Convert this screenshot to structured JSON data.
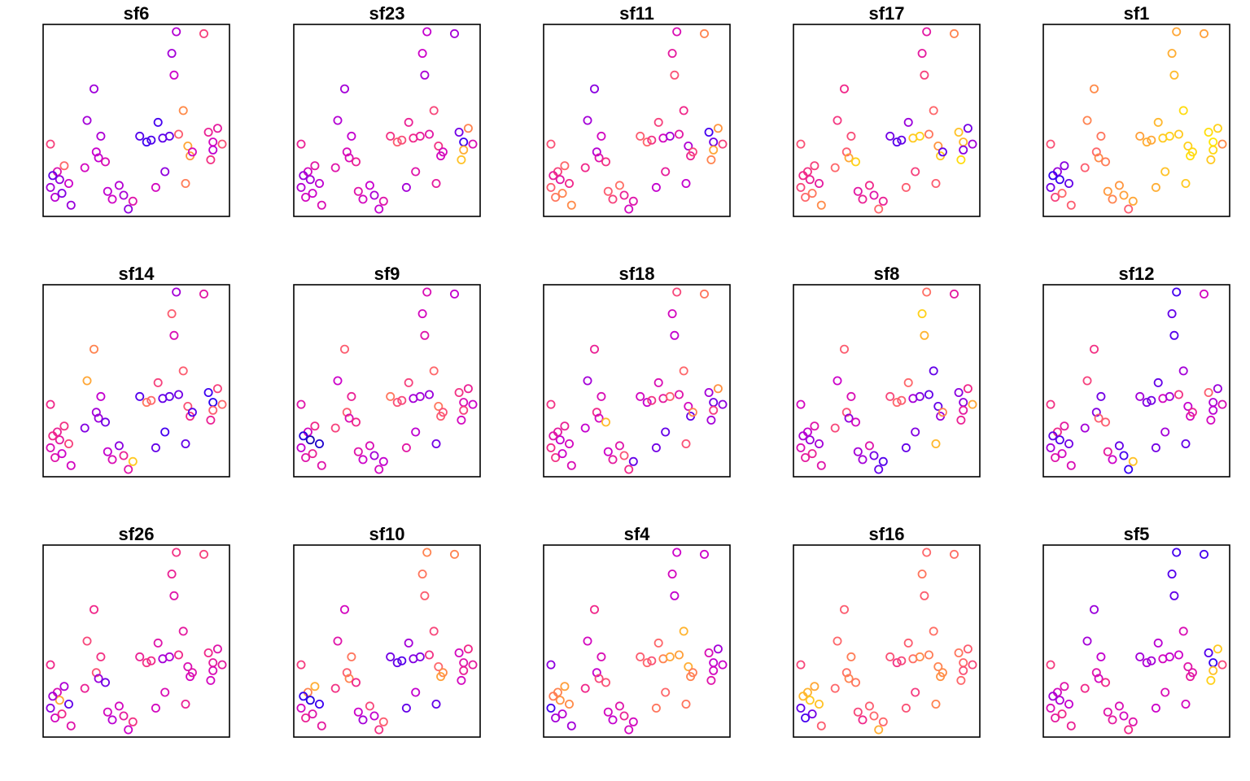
{
  "chart_data": {
    "type": "scatter",
    "layout": {
      "rows": 3,
      "cols": 5
    },
    "marker": "open-circle",
    "axes_shown": false,
    "grid": false,
    "legend": "none",
    "palette": [
      "#0d0887",
      "#2a00f5",
      "#8a00e0",
      "#cc00cc",
      "#f0288a",
      "#ff6a6a",
      "#ff9640",
      "#ffc02a",
      "#ffee00"
    ],
    "points": {
      "x": [
        0.9,
        1.2,
        1.5,
        1.7,
        1.3,
        1.0,
        0.9,
        1.1,
        1.4,
        1.8,
        2.4,
        2.9,
        3.1,
        2.5,
        2.8,
        3.0,
        3.4,
        3.6,
        3.3,
        3.9,
        4.1,
        4.3,
        4.5,
        4.8,
        5.1,
        5.3,
        5.6,
        5.8,
        5.5,
        5.9,
        6.2,
        6.3,
        6.4,
        6.1,
        6.5,
        6.7,
        6.9,
        7.0,
        6.8,
        7.1,
        7.6,
        7.8,
        8.0,
        8.2,
        8.0,
        7.9,
        8.4
      ],
      "y": [
        3.5,
        2.1,
        2.4,
        1.5,
        1.7,
        1.9,
        1.3,
        0.8,
        1.0,
        0.4,
        2.3,
        3.1,
        3.9,
        4.7,
        6.3,
        2.8,
        1.1,
        0.7,
        2.6,
        1.4,
        0.9,
        0.2,
        0.6,
        3.9,
        3.6,
        3.7,
        4.6,
        3.8,
        1.3,
        2.1,
        8.1,
        7.0,
        9.2,
        3.9,
        4.0,
        5.2,
        3.4,
        2.9,
        1.5,
        3.1,
        9.1,
        4.1,
        3.6,
        4.3,
        3.2,
        2.7,
        3.5
      ]
    },
    "panels": [
      {
        "title": "sf6",
        "values": [
          0.55,
          0.43,
          0.62,
          0.38,
          0.27,
          0.2,
          0.3,
          0.34,
          0.24,
          0.28,
          0.4,
          0.37,
          0.32,
          0.3,
          0.29,
          0.36,
          0.35,
          0.39,
          0.42,
          0.33,
          0.31,
          0.26,
          0.44,
          0.18,
          0.15,
          0.17,
          0.16,
          0.19,
          0.4,
          0.26,
          0.3,
          0.38,
          0.33,
          0.2,
          0.6,
          0.72,
          0.8,
          0.75,
          0.68,
          0.41,
          0.55,
          0.48,
          0.4,
          0.46,
          0.35,
          0.52,
          0.58
        ]
      },
      {
        "title": "sf23",
        "values": [
          0.48,
          0.4,
          0.45,
          0.35,
          0.3,
          0.28,
          0.33,
          0.4,
          0.38,
          0.42,
          0.44,
          0.41,
          0.36,
          0.33,
          0.3,
          0.42,
          0.44,
          0.4,
          0.48,
          0.37,
          0.31,
          0.36,
          0.44,
          0.52,
          0.6,
          0.57,
          0.48,
          0.5,
          0.3,
          0.44,
          0.38,
          0.31,
          0.36,
          0.47,
          0.45,
          0.56,
          0.52,
          0.4,
          0.46,
          0.41,
          0.3,
          0.22,
          0.15,
          0.7,
          0.82,
          0.88,
          0.42
        ]
      },
      {
        "title": "sf11",
        "values": [
          0.58,
          0.55,
          0.62,
          0.5,
          0.45,
          0.47,
          0.6,
          0.66,
          0.7,
          0.72,
          0.5,
          0.33,
          0.4,
          0.3,
          0.25,
          0.44,
          0.6,
          0.55,
          0.52,
          0.64,
          0.48,
          0.4,
          0.44,
          0.6,
          0.62,
          0.52,
          0.55,
          0.4,
          0.36,
          0.47,
          0.46,
          0.58,
          0.42,
          0.3,
          0.45,
          0.5,
          0.32,
          0.48,
          0.36,
          0.56,
          0.7,
          0.16,
          0.22,
          0.75,
          0.8,
          0.7,
          0.55
        ]
      },
      {
        "title": "sf17",
        "values": [
          0.58,
          0.52,
          0.55,
          0.46,
          0.48,
          0.5,
          0.56,
          0.62,
          0.66,
          0.72,
          0.62,
          0.6,
          0.57,
          0.53,
          0.5,
          0.8,
          0.45,
          0.48,
          0.92,
          0.5,
          0.44,
          0.62,
          0.48,
          0.22,
          0.18,
          0.2,
          0.28,
          0.9,
          0.6,
          0.55,
          0.46,
          0.55,
          0.45,
          0.92,
          0.66,
          0.62,
          0.75,
          0.9,
          0.6,
          0.2,
          0.7,
          0.88,
          0.85,
          0.22,
          0.25,
          0.95,
          0.3
        ]
      },
      {
        "title": "sf1",
        "values": [
          0.58,
          0.28,
          0.25,
          0.2,
          0.15,
          0.14,
          0.22,
          0.55,
          0.62,
          0.6,
          0.6,
          0.62,
          0.66,
          0.7,
          0.72,
          0.72,
          0.76,
          0.7,
          0.68,
          0.75,
          0.78,
          0.6,
          0.8,
          0.78,
          0.82,
          0.8,
          0.85,
          0.9,
          0.82,
          0.88,
          0.82,
          0.86,
          0.8,
          0.92,
          0.9,
          0.95,
          0.92,
          0.96,
          0.9,
          0.94,
          0.78,
          0.96,
          0.98,
          0.92,
          0.94,
          0.9,
          0.72
        ]
      },
      {
        "title": "sf14",
        "values": [
          0.5,
          0.48,
          0.52,
          0.55,
          0.46,
          0.5,
          0.42,
          0.44,
          0.38,
          0.4,
          0.24,
          0.3,
          0.36,
          0.8,
          0.7,
          0.28,
          0.36,
          0.42,
          0.22,
          0.25,
          0.48,
          0.44,
          0.9,
          0.18,
          0.66,
          0.62,
          0.55,
          0.2,
          0.2,
          0.16,
          0.6,
          0.42,
          0.3,
          0.2,
          0.22,
          0.6,
          0.58,
          0.5,
          0.2,
          0.18,
          0.45,
          0.15,
          0.12,
          0.55,
          0.6,
          0.48,
          0.62
        ]
      },
      {
        "title": "sf9",
        "values": [
          0.44,
          0.4,
          0.5,
          0.08,
          0.05,
          0.1,
          0.36,
          0.44,
          0.48,
          0.44,
          0.55,
          0.6,
          0.48,
          0.38,
          0.6,
          0.42,
          0.44,
          0.38,
          0.5,
          0.42,
          0.3,
          0.4,
          0.36,
          0.66,
          0.58,
          0.56,
          0.55,
          0.3,
          0.45,
          0.35,
          0.4,
          0.44,
          0.42,
          0.3,
          0.28,
          0.62,
          0.66,
          0.6,
          0.22,
          0.58,
          0.36,
          0.52,
          0.42,
          0.48,
          0.55,
          0.4,
          0.38
        ]
      },
      {
        "title": "sf18",
        "values": [
          0.52,
          0.46,
          0.48,
          0.4,
          0.36,
          0.44,
          0.5,
          0.52,
          0.38,
          0.42,
          0.36,
          0.5,
          0.42,
          0.3,
          0.48,
          0.4,
          0.38,
          0.46,
          0.86,
          0.44,
          0.58,
          0.5,
          0.2,
          0.4,
          0.36,
          0.52,
          0.42,
          0.46,
          0.22,
          0.2,
          0.4,
          0.36,
          0.56,
          0.6,
          0.44,
          0.62,
          0.4,
          0.2,
          0.58,
          0.7,
          0.66,
          0.3,
          0.22,
          0.74,
          0.54,
          0.3,
          0.26
        ]
      },
      {
        "title": "sf8",
        "values": [
          0.4,
          0.36,
          0.44,
          0.3,
          0.28,
          0.32,
          0.42,
          0.46,
          0.48,
          0.44,
          0.56,
          0.58,
          0.42,
          0.38,
          0.6,
          0.26,
          0.3,
          0.3,
          0.4,
          0.44,
          0.22,
          0.2,
          0.18,
          0.56,
          0.62,
          0.6,
          0.62,
          0.3,
          0.2,
          0.24,
          0.92,
          0.84,
          0.64,
          0.24,
          0.2,
          0.2,
          0.2,
          0.28,
          0.85,
          0.7,
          0.46,
          0.25,
          0.26,
          0.5,
          0.46,
          0.48,
          0.8
        ]
      },
      {
        "title": "sf12",
        "values": [
          0.52,
          0.5,
          0.46,
          0.22,
          0.18,
          0.2,
          0.3,
          0.44,
          0.4,
          0.42,
          0.3,
          0.24,
          0.22,
          0.55,
          0.52,
          0.6,
          0.46,
          0.38,
          0.6,
          0.2,
          0.16,
          0.14,
          0.88,
          0.3,
          0.24,
          0.22,
          0.2,
          0.4,
          0.22,
          0.3,
          0.2,
          0.18,
          0.16,
          0.3,
          0.52,
          0.3,
          0.36,
          0.4,
          0.2,
          0.48,
          0.4,
          0.6,
          0.32,
          0.28,
          0.34,
          0.4,
          0.42
        ]
      },
      {
        "title": "sf26",
        "values": [
          0.5,
          0.42,
          0.32,
          0.2,
          0.8,
          0.3,
          0.26,
          0.4,
          0.5,
          0.44,
          0.48,
          0.58,
          0.52,
          0.56,
          0.5,
          0.28,
          0.4,
          0.34,
          0.22,
          0.4,
          0.46,
          0.38,
          0.52,
          0.48,
          0.52,
          0.5,
          0.44,
          0.3,
          0.4,
          0.42,
          0.48,
          0.44,
          0.52,
          0.32,
          0.5,
          0.46,
          0.42,
          0.4,
          0.48,
          0.44,
          0.55,
          0.5,
          0.46,
          0.44,
          0.42,
          0.4,
          0.46
        ]
      },
      {
        "title": "sf10",
        "values": [
          0.54,
          0.7,
          0.82,
          0.15,
          0.1,
          0.14,
          0.4,
          0.48,
          0.44,
          0.46,
          0.52,
          0.6,
          0.66,
          0.44,
          0.4,
          0.7,
          0.38,
          0.3,
          0.5,
          0.56,
          0.36,
          0.52,
          0.6,
          0.22,
          0.2,
          0.18,
          0.3,
          0.24,
          0.2,
          0.36,
          0.66,
          0.6,
          0.7,
          0.24,
          0.52,
          0.56,
          0.62,
          0.78,
          0.2,
          0.72,
          0.7,
          0.4,
          0.44,
          0.5,
          0.48,
          0.4,
          0.46
        ]
      },
      {
        "title": "sf4",
        "values": [
          0.26,
          0.7,
          0.78,
          0.72,
          0.74,
          0.68,
          0.16,
          0.3,
          0.34,
          0.3,
          0.5,
          0.36,
          0.42,
          0.4,
          0.5,
          0.56,
          0.4,
          0.36,
          0.58,
          0.44,
          0.48,
          0.4,
          0.4,
          0.6,
          0.62,
          0.58,
          0.62,
          0.7,
          0.66,
          0.62,
          0.4,
          0.36,
          0.38,
          0.8,
          0.78,
          0.84,
          0.82,
          0.7,
          0.66,
          0.68,
          0.38,
          0.42,
          0.36,
          0.3,
          0.4,
          0.44,
          0.38
        ]
      },
      {
        "title": "sf16",
        "values": [
          0.56,
          0.84,
          0.8,
          0.88,
          0.9,
          0.85,
          0.2,
          0.16,
          0.22,
          0.6,
          0.62,
          0.64,
          0.68,
          0.62,
          0.6,
          0.7,
          0.56,
          0.5,
          0.66,
          0.6,
          0.62,
          0.82,
          0.62,
          0.58,
          0.52,
          0.56,
          0.6,
          0.64,
          0.58,
          0.54,
          0.66,
          0.6,
          0.62,
          0.72,
          0.68,
          0.64,
          0.7,
          0.74,
          0.7,
          0.72,
          0.64,
          0.66,
          0.62,
          0.6,
          0.58,
          0.62,
          0.56
        ]
      },
      {
        "title": "sf5",
        "values": [
          0.54,
          0.4,
          0.44,
          0.36,
          0.32,
          0.3,
          0.42,
          0.46,
          0.5,
          0.48,
          0.5,
          0.44,
          0.36,
          0.3,
          0.28,
          0.4,
          0.44,
          0.46,
          0.5,
          0.42,
          0.4,
          0.5,
          0.44,
          0.3,
          0.32,
          0.3,
          0.34,
          0.4,
          0.38,
          0.42,
          0.18,
          0.2,
          0.16,
          0.36,
          0.38,
          0.42,
          0.44,
          0.46,
          0.4,
          0.44,
          0.16,
          0.18,
          0.14,
          0.9,
          0.88,
          0.92,
          0.56
        ]
      }
    ]
  }
}
